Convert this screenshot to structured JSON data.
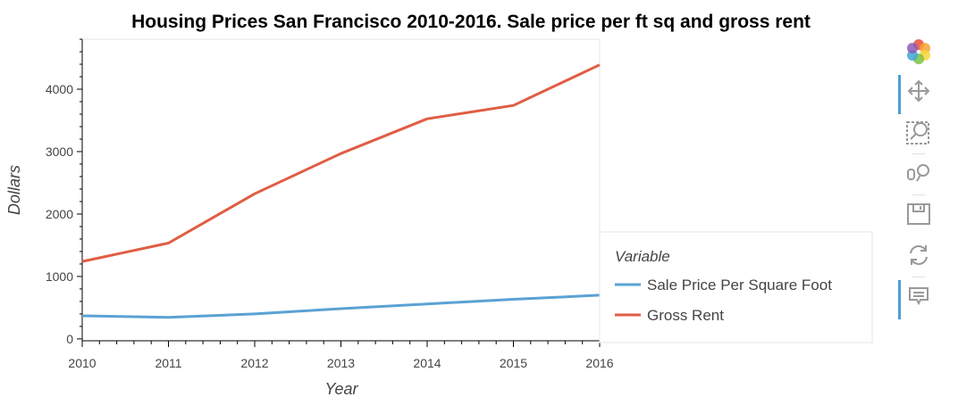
{
  "chart_data": {
    "type": "line",
    "title": "Housing Prices San Francisco 2010-2016. Sale price per ft sq and gross rent",
    "xlabel": "Year",
    "ylabel": "Dollars",
    "x": [
      2010,
      2011,
      2012,
      2013,
      2014,
      2015,
      2016
    ],
    "xlim": [
      2010,
      2016
    ],
    "ylim": [
      -30,
      4800
    ],
    "yticks": [
      0,
      1000,
      2000,
      3000,
      4000
    ],
    "xticks": [
      2010,
      2011,
      2012,
      2013,
      2014,
      2015,
      2016
    ],
    "grid": false,
    "legend": {
      "title": "Variable",
      "placement": "right"
    },
    "series": [
      {
        "name": "Sale Price Per Square Foot",
        "color": "#5aa2d4",
        "values": [
          370,
          345,
          400,
          485,
          560,
          635,
          700
        ]
      },
      {
        "name": "Gross Rent",
        "color": "#e05d44",
        "values": [
          1240,
          1535,
          2325,
          2970,
          3525,
          3740,
          4390
        ]
      }
    ]
  },
  "toolbar": {
    "tools": [
      {
        "name": "bokeh-logo-icon",
        "active": false
      },
      {
        "name": "pan-icon",
        "active": true
      },
      {
        "name": "box-zoom-icon",
        "active": false
      },
      {
        "name": "wheel-zoom-icon",
        "active": false
      },
      {
        "name": "save-icon",
        "active": false
      },
      {
        "name": "reset-icon",
        "active": false
      },
      {
        "name": "hover-icon",
        "active": true
      }
    ]
  }
}
